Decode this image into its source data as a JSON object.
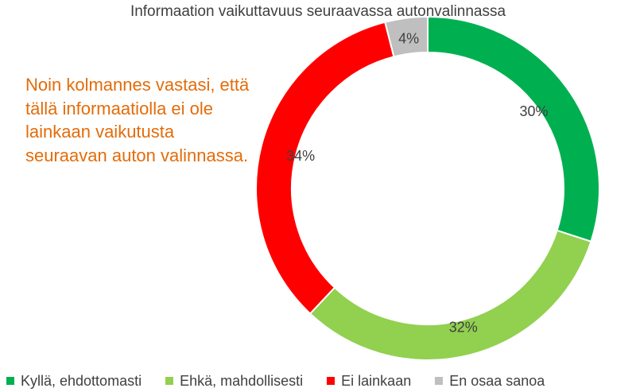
{
  "chart_data": {
    "type": "pie",
    "variant": "donut",
    "title": "Informaation vaikuttavuus seuraavassa autonvalinnassa",
    "categories": [
      "Kyllä, ehdottomasti",
      "Ehkä, mahdollisesti",
      "Ei lainkaan",
      "En osaa sanoa"
    ],
    "values": [
      30,
      32,
      34,
      4
    ],
    "data_labels": [
      "30%",
      "32%",
      "34%",
      "4%"
    ],
    "colors": [
      "#00b050",
      "#92d050",
      "#ff0000",
      "#bfbfbf"
    ],
    "legend_position": "bottom"
  },
  "annotation": "Noin kolmannes vastasi, että tällä informaatiolla ei ole lainkaan vaikutusta seuraavan auton valinnassa."
}
